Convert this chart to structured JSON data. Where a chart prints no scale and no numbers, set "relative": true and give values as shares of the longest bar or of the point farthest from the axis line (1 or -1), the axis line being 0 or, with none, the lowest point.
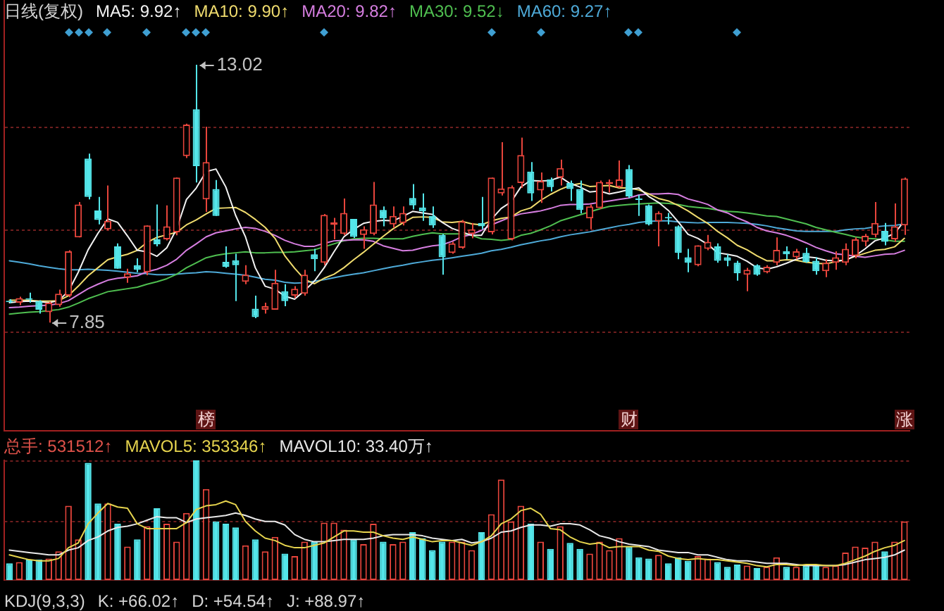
{
  "chart_data": [
    {
      "type": "candlestick",
      "title": "日线(复权)",
      "legend": "top left",
      "grid": "y",
      "tick_labels": false,
      "ylim": [
        5.68,
        14.32
      ],
      "yticks": [
        {
          "value": 11.76,
          "label": null
        },
        {
          "value": 9.71,
          "label": null
        },
        {
          "value": 7.66,
          "label": null
        }
      ],
      "categories": [
        null,
        null,
        null,
        null,
        null,
        null,
        null,
        null,
        null,
        null,
        null,
        null,
        null,
        null,
        null,
        null,
        null,
        null,
        null,
        null,
        null,
        null,
        null,
        null,
        null,
        null,
        null,
        null,
        null,
        null,
        null,
        null,
        null,
        null,
        null,
        null,
        null,
        null,
        null,
        null,
        null,
        null,
        null,
        null,
        null,
        null,
        null,
        null,
        null,
        null,
        null,
        null,
        null,
        null,
        null,
        null,
        null,
        null,
        null,
        null,
        null,
        null,
        null,
        null,
        null,
        null,
        null,
        null,
        null,
        null,
        null,
        null,
        null,
        null,
        null,
        null,
        null,
        null,
        null,
        null,
        null,
        null,
        null,
        null,
        null,
        null,
        null,
        null,
        null,
        null,
        null,
        null
      ],
      "ohlc": [
        [
          8.28,
          8.32,
          8.24,
          8.26
        ],
        [
          8.25,
          8.37,
          8.2,
          8.34
        ],
        [
          8.33,
          8.45,
          8.25,
          8.31
        ],
        [
          8.28,
          8.3,
          8.03,
          8.11
        ],
        [
          8.06,
          8.27,
          7.85,
          8.25
        ],
        [
          8.2,
          8.51,
          8.17,
          8.43
        ],
        [
          8.39,
          9.3,
          8.36,
          9.28
        ],
        [
          9.56,
          10.27,
          9.56,
          10.22
        ],
        [
          11.14,
          11.24,
          10.32,
          10.37
        ],
        [
          10.1,
          10.37,
          9.82,
          9.91
        ],
        [
          9.72,
          10.6,
          9.7,
          9.89
        ],
        [
          9.38,
          9.44,
          8.93,
          8.93
        ],
        [
          8.75,
          8.93,
          8.65,
          8.84
        ],
        [
          9.0,
          9.14,
          8.86,
          8.91
        ],
        [
          8.86,
          9.8,
          8.8,
          9.8
        ],
        [
          9.52,
          10.22,
          9.38,
          9.42
        ],
        [
          9.52,
          10.2,
          9.5,
          9.78
        ],
        [
          9.66,
          10.76,
          9.6,
          10.76
        ],
        [
          11.19,
          11.84,
          11.15,
          11.82
        ],
        [
          12.13,
          13.02,
          10.66,
          10.99
        ],
        [
          10.32,
          11.78,
          10.07,
          11.07
        ],
        [
          10.53,
          10.71,
          9.99,
          9.99
        ],
        [
          9.07,
          9.38,
          8.95,
          8.97
        ],
        [
          9.1,
          9.23,
          8.28,
          9.0
        ],
        [
          8.67,
          9.0,
          8.62,
          8.81
        ],
        [
          8.13,
          8.39,
          7.94,
          7.96
        ],
        [
          8.11,
          8.25,
          8.03,
          8.18
        ],
        [
          8.11,
          8.91,
          8.11,
          8.65
        ],
        [
          8.48,
          8.62,
          8.18,
          8.28
        ],
        [
          8.39,
          8.58,
          8.34,
          8.53
        ],
        [
          8.43,
          8.91,
          8.39,
          8.81
        ],
        [
          9.22,
          9.33,
          8.88,
          9.12
        ],
        [
          9.05,
          10.03,
          9.0,
          10.01
        ],
        [
          9.81,
          9.95,
          9.52,
          9.86
        ],
        [
          9.63,
          10.34,
          9.6,
          10.05
        ],
        [
          9.93,
          9.93,
          9.55,
          9.57
        ],
        [
          9.61,
          9.78,
          9.33,
          9.72
        ],
        [
          9.63,
          10.67,
          9.6,
          10.22
        ],
        [
          10.11,
          10.18,
          9.78,
          9.94
        ],
        [
          9.82,
          10.18,
          9.75,
          9.99
        ],
        [
          9.85,
          10.18,
          9.8,
          10.05
        ],
        [
          10.35,
          10.63,
          10.12,
          10.2
        ],
        [
          10.16,
          10.44,
          9.89,
          10.08
        ],
        [
          9.99,
          10.18,
          9.75,
          9.8
        ],
        [
          9.61,
          9.63,
          8.81,
          9.16
        ],
        [
          9.25,
          9.47,
          9.23,
          9.44
        ],
        [
          9.35,
          9.91,
          9.33,
          9.88
        ],
        [
          9.63,
          9.85,
          9.54,
          9.72
        ],
        [
          9.85,
          10.37,
          9.72,
          9.78
        ],
        [
          9.66,
          10.76,
          9.62,
          10.76
        ],
        [
          10.44,
          11.47,
          10.4,
          10.54
        ],
        [
          9.52,
          10.6,
          9.5,
          10.57
        ],
        [
          10.65,
          11.56,
          10.55,
          11.21
        ],
        [
          10.88,
          11.07,
          10.29,
          10.44
        ],
        [
          10.5,
          10.86,
          10.25,
          10.69
        ],
        [
          10.72,
          10.76,
          10.48,
          10.57
        ],
        [
          10.76,
          11.12,
          10.6,
          10.95
        ],
        [
          10.65,
          10.7,
          10.29,
          10.53
        ],
        [
          10.53,
          10.7,
          10.04,
          10.11
        ],
        [
          9.94,
          10.22,
          9.72,
          10.18
        ],
        [
          10.15,
          10.7,
          10.13,
          10.67
        ],
        [
          10.63,
          10.72,
          10.46,
          10.67
        ],
        [
          10.57,
          11.1,
          10.55,
          10.72
        ],
        [
          10.93,
          11.01,
          10.35,
          10.38
        ],
        [
          10.33,
          10.41,
          9.99,
          10.31
        ],
        [
          10.2,
          10.22,
          9.8,
          9.82
        ],
        [
          9.88,
          10.08,
          9.38,
          10.05
        ],
        [
          9.96,
          10.05,
          9.82,
          9.94
        ],
        [
          9.78,
          9.8,
          9.12,
          9.25
        ],
        [
          9.16,
          9.33,
          8.86,
          9.05
        ],
        [
          9.0,
          9.4,
          8.98,
          9.4
        ],
        [
          9.33,
          9.61,
          9.3,
          9.47
        ],
        [
          9.38,
          9.44,
          9.05,
          9.09
        ],
        [
          9.16,
          9.22,
          8.98,
          9.09
        ],
        [
          9.05,
          9.09,
          8.69,
          8.84
        ],
        [
          8.81,
          8.95,
          8.48,
          8.91
        ],
        [
          9.0,
          9.02,
          8.79,
          8.81
        ],
        [
          8.86,
          9.0,
          8.84,
          8.97
        ],
        [
          9.05,
          9.56,
          9.0,
          9.31
        ],
        [
          9.28,
          9.38,
          9.12,
          9.22
        ],
        [
          9.16,
          9.33,
          9.12,
          9.28
        ],
        [
          9.25,
          9.35,
          9.05,
          9.07
        ],
        [
          9.09,
          9.16,
          8.81,
          8.88
        ],
        [
          8.88,
          9.12,
          8.76,
          9.05
        ],
        [
          9.05,
          9.28,
          8.91,
          9.16
        ],
        [
          9.05,
          9.44,
          9.0,
          9.33
        ],
        [
          9.19,
          9.56,
          9.14,
          9.52
        ],
        [
          9.47,
          9.63,
          9.38,
          9.59
        ],
        [
          9.61,
          10.27,
          9.56,
          9.85
        ],
        [
          9.69,
          9.85,
          9.4,
          9.47
        ],
        [
          9.52,
          10.24,
          9.47,
          9.78
        ],
        [
          9.8,
          10.76,
          9.61,
          10.74
        ]
      ],
      "colors": [
        "#54e6ea",
        "#e8453c",
        "#54e6ea",
        "#54e6ea",
        "#e8453c",
        "#e8453c",
        "#e8453c",
        "#e8453c",
        "#54e6ea",
        "#54e6ea",
        "#e8453c",
        "#54e6ea",
        "#e8453c",
        "#54e6ea",
        "#e8453c",
        "#54e6ea",
        "#e8453c",
        "#e8453c",
        "#e8453c",
        "#54e6ea",
        "#e8453c",
        "#54e6ea",
        "#54e6ea",
        "#54e6ea",
        "#e8453c",
        "#54e6ea",
        "#e8453c",
        "#e8453c",
        "#54e6ea",
        "#e8453c",
        "#e8453c",
        "#54e6ea",
        "#e8453c",
        "#e8453c",
        "#e8453c",
        "#54e6ea",
        "#e8453c",
        "#e8453c",
        "#54e6ea",
        "#e8453c",
        "#e8453c",
        "#54e6ea",
        "#54e6ea",
        "#54e6ea",
        "#54e6ea",
        "#e8453c",
        "#e8453c",
        "#e8453c",
        "#54e6ea",
        "#e8453c",
        "#e8453c",
        "#e8453c",
        "#e8453c",
        "#54e6ea",
        "#e8453c",
        "#54e6ea",
        "#e8453c",
        "#54e6ea",
        "#54e6ea",
        "#e8453c",
        "#e8453c",
        "#e8453c",
        "#e8453c",
        "#54e6ea",
        "#54e6ea",
        "#54e6ea",
        "#e8453c",
        "#54e6ea",
        "#54e6ea",
        "#54e6ea",
        "#e8453c",
        "#e8453c",
        "#54e6ea",
        "#54e6ea",
        "#54e6ea",
        "#e8453c",
        "#54e6ea",
        "#e8453c",
        "#e8453c",
        "#54e6ea",
        "#e8453c",
        "#54e6ea",
        "#54e6ea",
        "#e8453c",
        "#e8453c",
        "#e8453c",
        "#e8453c",
        "#e8453c",
        "#e8453c",
        "#54e6ea",
        "#e8453c",
        "#e8453c"
      ],
      "series": [
        {
          "name": "MA5: 9.92↑",
          "type": "line",
          "color": "#f2f2f2",
          "values": [
            8.25,
            8.27,
            8.28,
            8.27,
            8.25,
            8.29,
            8.48,
            8.86,
            9.31,
            9.64,
            9.93,
            9.86,
            9.59,
            9.3,
            9.27,
            9.18,
            9.35,
            9.73,
            10.32,
            10.55,
            10.88,
            10.93,
            10.57,
            10.0,
            9.57,
            8.95,
            8.58,
            8.52,
            8.38,
            8.32,
            8.49,
            8.68,
            8.95,
            9.27,
            9.57,
            9.72,
            9.84,
            9.88,
            9.9,
            9.89,
            9.98,
            10.08,
            10.05,
            10.02,
            9.86,
            9.74,
            9.67,
            9.6,
            9.6,
            9.92,
            10.14,
            10.27,
            10.57,
            10.7,
            10.69,
            10.7,
            10.77,
            10.64,
            10.57,
            10.47,
            10.49,
            10.43,
            10.47,
            10.52,
            10.55,
            10.38,
            10.26,
            10.1,
            9.87,
            9.62,
            9.54,
            9.42,
            9.25,
            9.22,
            9.18,
            9.08,
            8.95,
            8.92,
            8.97,
            9.04,
            9.12,
            9.17,
            9.15,
            9.1,
            9.09,
            9.1,
            9.19,
            9.33,
            9.49,
            9.55,
            9.64,
            9.89
          ]
        },
        {
          "name": "MA10: 9.90↑",
          "type": "line",
          "color": "#f0dc6e",
          "values": [
            8.3,
            8.3,
            8.3,
            8.28,
            8.28,
            8.29,
            8.39,
            8.58,
            8.79,
            8.95,
            9.11,
            9.17,
            9.22,
            9.3,
            9.46,
            9.56,
            9.61,
            9.66,
            9.81,
            9.91,
            10.03,
            10.14,
            10.15,
            10.16,
            10.06,
            9.92,
            9.76,
            9.54,
            9.19,
            8.94,
            8.72,
            8.63,
            8.74,
            8.82,
            8.95,
            9.11,
            9.26,
            9.42,
            9.58,
            9.73,
            9.85,
            9.96,
            9.97,
            9.96,
            9.87,
            9.86,
            9.88,
            9.83,
            9.81,
            9.89,
            9.94,
            9.97,
            10.09,
            10.15,
            10.3,
            10.42,
            10.52,
            10.6,
            10.64,
            10.58,
            10.59,
            10.6,
            10.55,
            10.55,
            10.51,
            10.43,
            10.34,
            10.29,
            10.2,
            10.09,
            9.96,
            9.84,
            9.68,
            9.55,
            9.4,
            9.31,
            9.19,
            9.09,
            9.09,
            9.11,
            9.1,
            9.06,
            9.04,
            9.03,
            9.07,
            9.11,
            9.18,
            9.24,
            9.3,
            9.32,
            9.37,
            9.54
          ]
        },
        {
          "name": "MA20: 9.82↑",
          "type": "line",
          "color": "#d67ee0",
          "values": [
            8.15,
            8.16,
            8.18,
            8.19,
            8.2,
            8.23,
            8.29,
            8.41,
            8.53,
            8.62,
            8.7,
            8.74,
            8.76,
            8.79,
            8.87,
            8.92,
            9.0,
            9.12,
            9.3,
            9.43,
            9.57,
            9.65,
            9.69,
            9.73,
            9.76,
            9.74,
            9.68,
            9.6,
            9.5,
            9.43,
            9.38,
            9.38,
            9.44,
            9.49,
            9.5,
            9.51,
            9.51,
            9.48,
            9.39,
            9.34,
            9.29,
            9.3,
            9.35,
            9.39,
            9.41,
            9.48,
            9.57,
            9.62,
            9.7,
            9.81,
            9.89,
            9.97,
            10.03,
            10.06,
            10.09,
            10.14,
            10.2,
            10.22,
            10.22,
            10.23,
            10.26,
            10.29,
            10.32,
            10.35,
            10.41,
            10.43,
            10.43,
            10.44,
            10.42,
            10.33,
            10.28,
            10.22,
            10.11,
            10.05,
            9.95,
            9.87,
            9.76,
            9.69,
            9.65,
            9.6,
            9.53,
            9.45,
            9.36,
            9.29,
            9.23,
            9.21,
            9.18,
            9.16,
            9.19,
            9.22,
            9.23,
            9.3
          ]
        },
        {
          "name": "MA30: 9.52↓",
          "type": "line",
          "color": "#4fbf50",
          "values": [
            8.02,
            8.04,
            8.06,
            8.07,
            8.09,
            8.11,
            8.16,
            8.24,
            8.33,
            8.4,
            8.47,
            8.5,
            8.53,
            8.56,
            8.62,
            8.67,
            8.73,
            8.82,
            8.95,
            9.05,
            9.15,
            9.2,
            9.23,
            9.25,
            9.27,
            9.25,
            9.25,
            9.26,
            9.26,
            9.27,
            9.29,
            9.31,
            9.37,
            9.43,
            9.49,
            9.53,
            9.54,
            9.54,
            9.53,
            9.53,
            9.53,
            9.58,
            9.62,
            9.65,
            9.63,
            9.63,
            9.63,
            9.6,
            9.53,
            9.52,
            9.5,
            9.52,
            9.6,
            9.64,
            9.71,
            9.79,
            9.89,
            9.95,
            10.01,
            10.07,
            10.13,
            10.18,
            10.2,
            10.22,
            10.23,
            10.24,
            10.25,
            10.24,
            10.22,
            10.18,
            10.16,
            10.14,
            10.11,
            10.08,
            10.07,
            10.05,
            10.02,
            9.99,
            9.98,
            9.93,
            9.88,
            9.83,
            9.76,
            9.71,
            9.66,
            9.62,
            9.57,
            9.54,
            9.53,
            9.51,
            9.48,
            9.48
          ]
        },
        {
          "name": "MA60: 9.27↑",
          "type": "line",
          "color": "#4eaad8",
          "values": [
            9.09,
            9.06,
            9.03,
            8.99,
            8.96,
            8.93,
            8.91,
            8.91,
            8.92,
            8.91,
            8.9,
            8.88,
            8.86,
            8.84,
            8.83,
            8.81,
            8.81,
            8.82,
            8.84,
            8.85,
            8.87,
            8.86,
            8.84,
            8.82,
            8.8,
            8.76,
            8.72,
            8.7,
            8.66,
            8.64,
            8.65,
            8.68,
            8.71,
            8.75,
            8.79,
            8.82,
            8.85,
            8.89,
            8.93,
            8.97,
            9.0,
            9.04,
            9.07,
            9.1,
            9.12,
            9.15,
            9.18,
            9.21,
            9.24,
            9.29,
            9.32,
            9.36,
            9.41,
            9.45,
            9.49,
            9.52,
            9.57,
            9.61,
            9.64,
            9.67,
            9.71,
            9.75,
            9.79,
            9.82,
            9.86,
            9.88,
            9.89,
            9.89,
            9.87,
            9.86,
            9.85,
            9.86,
            9.86,
            9.86,
            9.85,
            9.84,
            9.82,
            9.79,
            9.75,
            9.72,
            9.69,
            9.68,
            9.68,
            9.68,
            9.68,
            9.71,
            9.73,
            9.74,
            9.77,
            9.79,
            9.8,
            9.83
          ]
        }
      ],
      "annotations": [
        "13.02",
        "7.85",
        "榜",
        "财",
        "涨"
      ]
    },
    {
      "type": "bar",
      "relative": true,
      "legend": "top left",
      "tick_labels": false,
      "ref_lines": [
        {
          "axis": "y",
          "value": 0.5,
          "color": "#6e1e1e",
          "line_style": "dotted"
        },
        {
          "axis": "y",
          "value": 1,
          "color": "#6e1e1e",
          "line_style": "dotted"
        }
      ],
      "categories": [
        null,
        null,
        null,
        null,
        null,
        null,
        null,
        null,
        null,
        null,
        null,
        null,
        null,
        null,
        null,
        null,
        null,
        null,
        null,
        null,
        null,
        null,
        null,
        null,
        null,
        null,
        null,
        null,
        null,
        null,
        null,
        null,
        null,
        null,
        null,
        null,
        null,
        null,
        null,
        null,
        null,
        null,
        null,
        null,
        null,
        null,
        null,
        null,
        null,
        null,
        null,
        null,
        null,
        null,
        null,
        null,
        null,
        null,
        null,
        null,
        null,
        null,
        null,
        null,
        null,
        null,
        null,
        null,
        null,
        null,
        null,
        null,
        null,
        null,
        null,
        null,
        null,
        null,
        null,
        null,
        null,
        null,
        null,
        null,
        null,
        null,
        null,
        null,
        null,
        null,
        null,
        null
      ],
      "series": [
        {
          "name": "总手: 531512↑",
          "color": "#e0524a",
          "colors": [
            "#54e6ea",
            "#e8453c",
            "#54e6ea",
            "#54e6ea",
            "#e8453c",
            "#e8453c",
            "#e8453c",
            "#e8453c",
            "#54e6ea",
            "#54e6ea",
            "#e8453c",
            "#54e6ea",
            "#e8453c",
            "#54e6ea",
            "#e8453c",
            "#54e6ea",
            "#e8453c",
            "#e8453c",
            "#e8453c",
            "#54e6ea",
            "#e8453c",
            "#54e6ea",
            "#54e6ea",
            "#54e6ea",
            "#e8453c",
            "#54e6ea",
            "#e8453c",
            "#e8453c",
            "#54e6ea",
            "#e8453c",
            "#e8453c",
            "#54e6ea",
            "#e8453c",
            "#e8453c",
            "#e8453c",
            "#54e6ea",
            "#e8453c",
            "#e8453c",
            "#54e6ea",
            "#e8453c",
            "#e8453c",
            "#54e6ea",
            "#54e6ea",
            "#54e6ea",
            "#54e6ea",
            "#e8453c",
            "#e8453c",
            "#e8453c",
            "#54e6ea",
            "#e8453c",
            "#e8453c",
            "#e8453c",
            "#e8453c",
            "#54e6ea",
            "#e8453c",
            "#54e6ea",
            "#e8453c",
            "#54e6ea",
            "#54e6ea",
            "#e8453c",
            "#e8453c",
            "#e8453c",
            "#e8453c",
            "#54e6ea",
            "#54e6ea",
            "#54e6ea",
            "#e8453c",
            "#54e6ea",
            "#54e6ea",
            "#54e6ea",
            "#e8453c",
            "#e8453c",
            "#54e6ea",
            "#54e6ea",
            "#54e6ea",
            "#e8453c",
            "#54e6ea",
            "#e8453c",
            "#e8453c",
            "#54e6ea",
            "#e8453c",
            "#54e6ea",
            "#54e6ea",
            "#e8453c",
            "#e8453c",
            "#e8453c",
            "#e8453c",
            "#e8453c",
            "#e8453c",
            "#54e6ea",
            "#e8453c",
            "#e8453c"
          ],
          "values": [
            0.14,
            0.15,
            0.17,
            0.17,
            0.18,
            0.24,
            0.62,
            0.34,
            0.98,
            0.64,
            0.64,
            0.47,
            0.28,
            0.34,
            0.45,
            0.6,
            0.47,
            0.32,
            0.56,
            1,
            0.76,
            0.49,
            0.47,
            0.44,
            0.29,
            0.34,
            0.24,
            0.36,
            0.22,
            0.2,
            0.32,
            0.32,
            0.48,
            0.48,
            0.42,
            0.34,
            0.3,
            0.47,
            0.32,
            0.3,
            0.32,
            0.4,
            0.35,
            0.25,
            0.32,
            0.32,
            0.32,
            0.25,
            0.4,
            0.55,
            0.84,
            0.49,
            0.62,
            0.47,
            0.32,
            0.26,
            0.45,
            0.31,
            0.26,
            0.22,
            0.32,
            0.25,
            0.35,
            0.28,
            0.19,
            0.18,
            0.21,
            0.14,
            0.19,
            0.16,
            0.2,
            0.18,
            0.15,
            0.11,
            0.13,
            0.12,
            0.1,
            0.11,
            0.19,
            0.11,
            0.11,
            0.12,
            0.13,
            0.11,
            0.12,
            0.23,
            0.28,
            0.27,
            0.32,
            0.24,
            0.32,
            0.49
          ]
        },
        {
          "name": "MAVOL5: 353346↑",
          "type": "line",
          "color": "#e6d44e",
          "values": [
            0.21,
            0.19,
            0.17,
            0.16,
            0.16,
            0.18,
            0.27,
            0.31,
            0.47,
            0.56,
            0.64,
            0.61,
            0.6,
            0.47,
            0.43,
            0.43,
            0.43,
            0.43,
            0.48,
            0.59,
            0.62,
            0.63,
            0.66,
            0.63,
            0.49,
            0.41,
            0.35,
            0.33,
            0.29,
            0.27,
            0.27,
            0.29,
            0.31,
            0.36,
            0.41,
            0.41,
            0.4,
            0.4,
            0.37,
            0.35,
            0.34,
            0.36,
            0.34,
            0.32,
            0.33,
            0.33,
            0.31,
            0.29,
            0.32,
            0.37,
            0.47,
            0.51,
            0.58,
            0.6,
            0.55,
            0.43,
            0.42,
            0.36,
            0.32,
            0.3,
            0.31,
            0.27,
            0.28,
            0.28,
            0.28,
            0.25,
            0.24,
            0.2,
            0.18,
            0.17,
            0.18,
            0.17,
            0.17,
            0.16,
            0.15,
            0.14,
            0.12,
            0.11,
            0.13,
            0.13,
            0.12,
            0.13,
            0.13,
            0.12,
            0.12,
            0.14,
            0.17,
            0.2,
            0.24,
            0.27,
            0.29,
            0.33
          ]
        },
        {
          "name": "MAVOL10: 33.40万↑",
          "type": "line",
          "color": "#e8e8e8",
          "values": [
            0.25,
            0.24,
            0.23,
            0.22,
            0.21,
            0.21,
            0.25,
            0.27,
            0.33,
            0.36,
            0.41,
            0.44,
            0.45,
            0.47,
            0.5,
            0.53,
            0.52,
            0.52,
            0.48,
            0.51,
            0.52,
            0.53,
            0.54,
            0.56,
            0.54,
            0.51,
            0.49,
            0.49,
            0.46,
            0.38,
            0.34,
            0.32,
            0.32,
            0.33,
            0.34,
            0.34,
            0.34,
            0.35,
            0.37,
            0.38,
            0.38,
            0.38,
            0.37,
            0.35,
            0.34,
            0.33,
            0.34,
            0.31,
            0.32,
            0.35,
            0.4,
            0.41,
            0.44,
            0.46,
            0.46,
            0.45,
            0.47,
            0.47,
            0.46,
            0.42,
            0.37,
            0.35,
            0.32,
            0.3,
            0.29,
            0.28,
            0.25,
            0.24,
            0.23,
            0.23,
            0.21,
            0.21,
            0.19,
            0.17,
            0.16,
            0.16,
            0.15,
            0.14,
            0.14,
            0.14,
            0.13,
            0.12,
            0.12,
            0.12,
            0.12,
            0.13,
            0.15,
            0.17,
            0.18,
            0.19,
            0.21,
            0.25
          ]
        }
      ]
    },
    {
      "type": "other",
      "title": "KDJ(9,3,3)",
      "annotations": [
        "K: +66.02↑",
        "D: +54.54↑",
        "J: +88.97↑"
      ]
    }
  ]
}
